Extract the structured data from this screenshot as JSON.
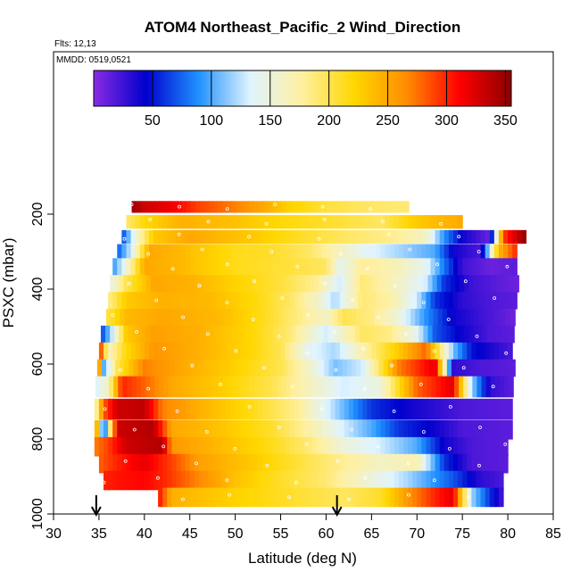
{
  "chart_data": {
    "type": "heatmap",
    "title": "ATOM4 Northeast_Pacific_2 Wind_Direction",
    "subtitle_flights": "Flts: 12,13",
    "subtitle_dates": "MMDD: 0519,0521",
    "xlabel": "Latitude (deg N)",
    "ylabel": "PSXC (mbar)",
    "xlim": [
      30,
      85
    ],
    "ylim": [
      1000,
      0
    ],
    "x_ticks": [
      30,
      35,
      40,
      45,
      50,
      55,
      60,
      65,
      70,
      75,
      80,
      85
    ],
    "y_ticks": [
      200,
      400,
      600,
      800,
      1000
    ],
    "colorbar": {
      "min": 0,
      "max": 355,
      "ticks": [
        50,
        100,
        150,
        200,
        250,
        300,
        350
      ],
      "colors": [
        "#8A2BE2",
        "#0000CD",
        "#1E90FF",
        "#E0F4FF",
        "#FFF0A0",
        "#FFD700",
        "#FF8C00",
        "#FF0000",
        "#8B0000"
      ]
    },
    "markers_lat": [
      34.7,
      61.2
    ],
    "rows": [
      {
        "p": 180,
        "h": 30,
        "x0": 38.6,
        "x1": 69,
        "stops": [
          [
            38.6,
            350
          ],
          [
            40,
            330
          ],
          [
            43,
            315
          ],
          [
            46,
            290
          ],
          [
            50,
            270
          ],
          [
            53,
            250
          ],
          [
            56,
            225
          ],
          [
            60,
            205
          ],
          [
            64,
            195
          ],
          [
            68,
            190
          ]
        ]
      },
      {
        "p": 220,
        "h": 35,
        "x0": 38.0,
        "x1": 75,
        "stops": [
          [
            38,
            190
          ],
          [
            40,
            220
          ],
          [
            44,
            245
          ],
          [
            50,
            235
          ],
          [
            55,
            220
          ],
          [
            60,
            210
          ],
          [
            66,
            195
          ],
          [
            70,
            230
          ],
          [
            75,
            250
          ]
        ]
      },
      {
        "p": 260,
        "h": 35,
        "x0": 37.5,
        "x1": 82,
        "stops": [
          [
            37.5,
            60
          ],
          [
            39,
            150
          ],
          [
            41,
            230
          ],
          [
            45,
            250
          ],
          [
            52,
            230
          ],
          [
            56,
            215
          ],
          [
            62,
            195
          ],
          [
            68,
            180
          ],
          [
            71,
            160
          ],
          [
            73,
            90
          ],
          [
            75,
            40
          ],
          [
            78,
            10
          ],
          [
            79.5,
            290
          ],
          [
            81,
            330
          ],
          [
            82,
            355
          ]
        ]
      },
      {
        "p": 300,
        "h": 40,
        "x0": 37.0,
        "x1": 81,
        "stops": [
          [
            37,
            70
          ],
          [
            38.5,
            130
          ],
          [
            40.5,
            250
          ],
          [
            44,
            240
          ],
          [
            50,
            215
          ],
          [
            54,
            210
          ],
          [
            58,
            195
          ],
          [
            62,
            160
          ],
          [
            64,
            140
          ],
          [
            68,
            120
          ],
          [
            72,
            100
          ],
          [
            74,
            40
          ],
          [
            77,
            20
          ],
          [
            79,
            240
          ],
          [
            81,
            300
          ]
        ]
      },
      {
        "p": 340,
        "h": 45,
        "x0": 36.5,
        "x1": 81,
        "stops": [
          [
            36.5,
            90
          ],
          [
            38,
            150
          ],
          [
            40,
            250
          ],
          [
            44,
            240
          ],
          [
            50,
            215
          ],
          [
            56,
            205
          ],
          [
            60,
            195
          ],
          [
            61.5,
            140
          ],
          [
            64,
            180
          ],
          [
            68,
            165
          ],
          [
            71,
            140
          ],
          [
            73,
            80
          ],
          [
            75,
            25
          ],
          [
            78,
            10
          ],
          [
            81,
            15
          ]
        ]
      },
      {
        "p": 385,
        "h": 45,
        "x0": 36.2,
        "x1": 81,
        "stops": [
          [
            36.2,
            140
          ],
          [
            38,
            200
          ],
          [
            41,
            250
          ],
          [
            45,
            245
          ],
          [
            51,
            220
          ],
          [
            55,
            205
          ],
          [
            59,
            180
          ],
          [
            61.5,
            130
          ],
          [
            64,
            190
          ],
          [
            68,
            160
          ],
          [
            71,
            130
          ],
          [
            73,
            60
          ],
          [
            76,
            25
          ],
          [
            79,
            15
          ],
          [
            81,
            10
          ]
        ]
      },
      {
        "p": 430,
        "h": 45,
        "x0": 36.0,
        "x1": 81,
        "stops": [
          [
            36,
            180
          ],
          [
            38,
            230
          ],
          [
            42,
            245
          ],
          [
            47,
            240
          ],
          [
            52,
            220
          ],
          [
            56,
            195
          ],
          [
            59,
            160
          ],
          [
            61,
            120
          ],
          [
            64,
            190
          ],
          [
            67,
            175
          ],
          [
            70,
            130
          ],
          [
            72,
            60
          ],
          [
            75,
            30
          ],
          [
            78,
            20
          ],
          [
            81,
            15
          ]
        ]
      },
      {
        "p": 475,
        "h": 45,
        "x0": 35.8,
        "x1": 80.5,
        "stops": [
          [
            35.8,
            200
          ],
          [
            38,
            240
          ],
          [
            42,
            250
          ],
          [
            48,
            240
          ],
          [
            53,
            215
          ],
          [
            57,
            185
          ],
          [
            60,
            160
          ],
          [
            62,
            200
          ],
          [
            65,
            185
          ],
          [
            68,
            150
          ],
          [
            71,
            90
          ],
          [
            74,
            40
          ],
          [
            77,
            25
          ],
          [
            80.5,
            10
          ]
        ]
      },
      {
        "p": 520,
        "h": 45,
        "x0": 35.2,
        "x1": 80.5,
        "stops": [
          [
            35.2,
            60
          ],
          [
            36.5,
            130
          ],
          [
            38,
            230
          ],
          [
            41,
            255
          ],
          [
            46,
            245
          ],
          [
            52,
            220
          ],
          [
            56,
            190
          ],
          [
            60,
            130
          ],
          [
            64,
            195
          ],
          [
            67,
            185
          ],
          [
            70,
            140
          ],
          [
            72,
            70
          ],
          [
            75,
            40
          ],
          [
            78,
            20
          ],
          [
            80.5,
            15
          ]
        ]
      },
      {
        "p": 565,
        "h": 45,
        "x0": 35.0,
        "x1": 80.5,
        "stops": [
          [
            35,
            320
          ],
          [
            36,
            160
          ],
          [
            38,
            220
          ],
          [
            41,
            260
          ],
          [
            46,
            245
          ],
          [
            52,
            220
          ],
          [
            55,
            200
          ],
          [
            58,
            140
          ],
          [
            61,
            120
          ],
          [
            64,
            170
          ],
          [
            68,
            230
          ],
          [
            71,
            280
          ],
          [
            74,
            110
          ],
          [
            76,
            50
          ],
          [
            80.5,
            20
          ]
        ]
      },
      {
        "p": 610,
        "h": 45,
        "x0": 34.8,
        "x1": 80.5,
        "stops": [
          [
            34.8,
            330
          ],
          [
            35.5,
            100
          ],
          [
            37,
            200
          ],
          [
            40,
            270
          ],
          [
            44,
            250
          ],
          [
            50,
            225
          ],
          [
            55,
            200
          ],
          [
            58,
            160
          ],
          [
            61,
            110
          ],
          [
            64,
            130
          ],
          [
            68,
            270
          ],
          [
            72,
            320
          ],
          [
            74,
            30
          ],
          [
            77,
            20
          ],
          [
            80.5,
            15
          ]
        ]
      },
      {
        "p": 660,
        "h": 55,
        "x0": 34.6,
        "x1": 80.5,
        "stops": [
          [
            34.6,
            130
          ],
          [
            36,
            160
          ],
          [
            37.5,
            300
          ],
          [
            40,
            280
          ],
          [
            43,
            250
          ],
          [
            48,
            230
          ],
          [
            54,
            200
          ],
          [
            58,
            165
          ],
          [
            62,
            130
          ],
          [
            66,
            150
          ],
          [
            70,
            280
          ],
          [
            74,
            320
          ],
          [
            76,
            120
          ],
          [
            78,
            30
          ],
          [
            80.5,
            15
          ]
        ]
      },
      {
        "p": 720,
        "h": 55,
        "x0": 34.5,
        "x1": 80.5,
        "stops": [
          [
            34.5,
            150
          ],
          [
            35.5,
            280
          ],
          [
            37,
            330
          ],
          [
            40,
            335
          ],
          [
            42,
            270
          ],
          [
            46,
            245
          ],
          [
            52,
            215
          ],
          [
            57,
            180
          ],
          [
            61,
            120
          ],
          [
            65,
            60
          ],
          [
            69,
            40
          ],
          [
            72,
            30
          ],
          [
            75,
            20
          ],
          [
            80.5,
            15
          ]
        ]
      },
      {
        "p": 775,
        "h": 50,
        "x0": 34.5,
        "x1": 80.5,
        "stops": [
          [
            34.5,
            300
          ],
          [
            35.5,
            50
          ],
          [
            37,
            330
          ],
          [
            41,
            340
          ],
          [
            43,
            250
          ],
          [
            48,
            235
          ],
          [
            54,
            210
          ],
          [
            58,
            175
          ],
          [
            62,
            130
          ],
          [
            65,
            100
          ],
          [
            68,
            60
          ],
          [
            72,
            40
          ],
          [
            75,
            20
          ],
          [
            80.5,
            15
          ]
        ]
      },
      {
        "p": 820,
        "h": 50,
        "x0": 34.5,
        "x1": 80,
        "stops": [
          [
            34.5,
            270
          ],
          [
            36,
            290
          ],
          [
            38,
            330
          ],
          [
            42,
            340
          ],
          [
            43,
            260
          ],
          [
            48,
            240
          ],
          [
            54,
            215
          ],
          [
            58,
            190
          ],
          [
            62,
            150
          ],
          [
            66,
            130
          ],
          [
            70,
            100
          ],
          [
            73,
            40
          ],
          [
            76,
            20
          ],
          [
            80,
            15
          ]
        ]
      },
      {
        "p": 865,
        "h": 50,
        "x0": 35.0,
        "x1": 80,
        "stops": [
          [
            35,
            280
          ],
          [
            37,
            300
          ],
          [
            40,
            320
          ],
          [
            43,
            290
          ],
          [
            46,
            255
          ],
          [
            52,
            230
          ],
          [
            57,
            205
          ],
          [
            62,
            180
          ],
          [
            66,
            160
          ],
          [
            70,
            170
          ],
          [
            73,
            60
          ],
          [
            76,
            20
          ],
          [
            80,
            15
          ]
        ]
      },
      {
        "p": 910,
        "h": 50,
        "x0": 35.5,
        "x1": 79.5,
        "stops": [
          [
            35.5,
            300
          ],
          [
            37,
            305
          ],
          [
            40,
            310
          ],
          [
            42,
            300
          ],
          [
            45,
            275
          ],
          [
            50,
            235
          ],
          [
            55,
            210
          ],
          [
            60,
            190
          ],
          [
            65,
            150
          ],
          [
            69,
            120
          ],
          [
            72,
            90
          ],
          [
            74,
            70
          ],
          [
            77,
            30
          ],
          [
            79.5,
            20
          ]
        ]
      },
      {
        "p": 955,
        "h": 50,
        "x0": 41.5,
        "x1": 79.5,
        "stops": [
          [
            41.5,
            310
          ],
          [
            43,
            245
          ],
          [
            48,
            230
          ],
          [
            54,
            215
          ],
          [
            58,
            205
          ],
          [
            62,
            195
          ],
          [
            66,
            210
          ],
          [
            69,
            260
          ],
          [
            72,
            300
          ],
          [
            74,
            320
          ],
          [
            76,
            120
          ],
          [
            78,
            60
          ],
          [
            79.5,
            20
          ]
        ]
      }
    ]
  }
}
